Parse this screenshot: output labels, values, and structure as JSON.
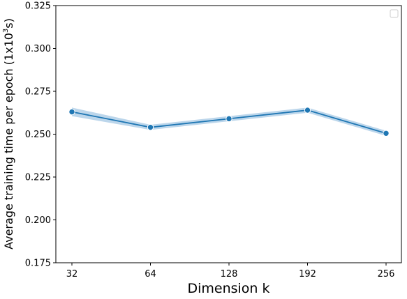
{
  "chart_data": {
    "type": "line",
    "x": [
      "32",
      "64",
      "128",
      "192",
      "256"
    ],
    "series": [
      {
        "values": [
          0.263,
          0.254,
          0.259,
          0.264,
          0.2505
        ],
        "band_lower": [
          0.2605,
          0.2525,
          0.2575,
          0.2625,
          0.249
        ],
        "band_upper": [
          0.2655,
          0.2555,
          0.2605,
          0.2655,
          0.252
        ],
        "color": "#1f77b4",
        "band_color": "#a6c8e4"
      }
    ],
    "xlabel": "Dimension k",
    "ylabel": "Average training time per epoch (1x10",
    "ylabel_sup": "3",
    "ylabel_suffix": "s)",
    "ylim": [
      0.175,
      0.325
    ],
    "yticks": [
      "0.175",
      "0.200",
      "0.225",
      "0.250",
      "0.275",
      "0.300",
      "0.325"
    ],
    "grid": false,
    "legend": "top-right (empty)"
  }
}
